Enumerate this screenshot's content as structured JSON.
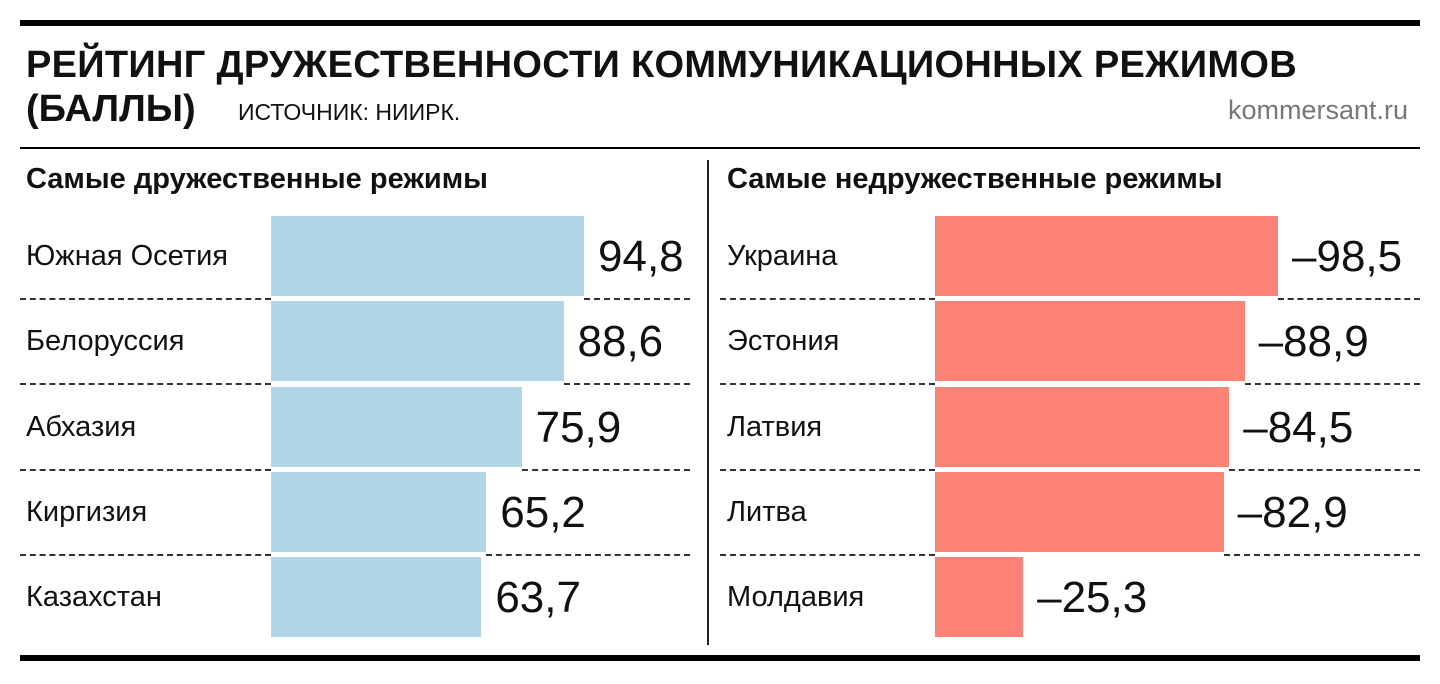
{
  "header": {
    "title_line1": "РЕЙТИНГ ДРУЖЕСТВЕННОСТИ КОММУНИКАЦИОННЫХ РЕЖИМОВ",
    "title_line2": "(БАЛЛЫ)",
    "source": "ИСТОЧНИК: НИИРК.",
    "site": "kommersant.ru"
  },
  "colors": {
    "friendly_bar": "#b3d5e8",
    "unfriendly_bar": "#fc8275"
  },
  "chart_data": [
    {
      "type": "bar",
      "orientation": "horizontal",
      "title": "Самые дружественные режимы",
      "categories": [
        "Южная Осетия",
        "Белоруссия",
        "Абхазия",
        "Киргизия",
        "Казахстан"
      ],
      "values": [
        94.8,
        88.6,
        75.9,
        65.2,
        63.7
      ],
      "value_labels": [
        "94,8",
        "88,6",
        "75,9",
        "65,2",
        "63,7"
      ],
      "color": "#b3d5e8"
    },
    {
      "type": "bar",
      "orientation": "horizontal",
      "title": "Самые недружественные режимы",
      "categories": [
        "Украина",
        "Эстония",
        "Латвия",
        "Литва",
        "Молдавия"
      ],
      "values": [
        -98.5,
        -88.9,
        -84.5,
        -82.9,
        -25.3
      ],
      "value_labels": [
        "–98,5",
        "–88,9",
        "–84,5",
        "–82,9",
        "–25,3"
      ],
      "color": "#fc8275"
    }
  ]
}
